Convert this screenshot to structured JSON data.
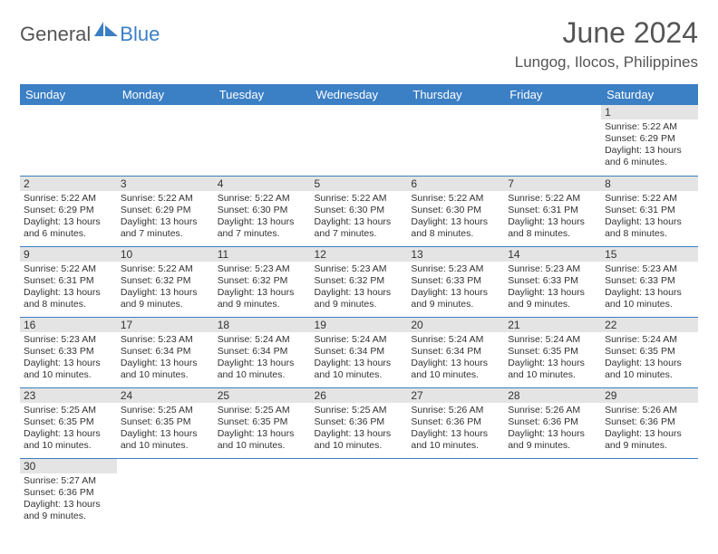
{
  "logo": {
    "general": "General",
    "blue": "Blue"
  },
  "title": "June 2024",
  "subtitle": "Lungog, Ilocos, Philippines",
  "colors": {
    "header_bg": "#3b7fc4",
    "header_text": "#ffffff",
    "daynum_bg": "#e4e4e4",
    "border": "#3b7fc4",
    "text": "#333333",
    "title": "#555555"
  },
  "weekdays": [
    "Sunday",
    "Monday",
    "Tuesday",
    "Wednesday",
    "Thursday",
    "Friday",
    "Saturday"
  ],
  "weeks": [
    [
      null,
      null,
      null,
      null,
      null,
      null,
      {
        "n": "1",
        "sr": "5:22 AM",
        "ss": "6:29 PM",
        "dl": "13 hours and 6 minutes."
      }
    ],
    [
      {
        "n": "2",
        "sr": "5:22 AM",
        "ss": "6:29 PM",
        "dl": "13 hours and 6 minutes."
      },
      {
        "n": "3",
        "sr": "5:22 AM",
        "ss": "6:29 PM",
        "dl": "13 hours and 7 minutes."
      },
      {
        "n": "4",
        "sr": "5:22 AM",
        "ss": "6:30 PM",
        "dl": "13 hours and 7 minutes."
      },
      {
        "n": "5",
        "sr": "5:22 AM",
        "ss": "6:30 PM",
        "dl": "13 hours and 7 minutes."
      },
      {
        "n": "6",
        "sr": "5:22 AM",
        "ss": "6:30 PM",
        "dl": "13 hours and 8 minutes."
      },
      {
        "n": "7",
        "sr": "5:22 AM",
        "ss": "6:31 PM",
        "dl": "13 hours and 8 minutes."
      },
      {
        "n": "8",
        "sr": "5:22 AM",
        "ss": "6:31 PM",
        "dl": "13 hours and 8 minutes."
      }
    ],
    [
      {
        "n": "9",
        "sr": "5:22 AM",
        "ss": "6:31 PM",
        "dl": "13 hours and 8 minutes."
      },
      {
        "n": "10",
        "sr": "5:22 AM",
        "ss": "6:32 PM",
        "dl": "13 hours and 9 minutes."
      },
      {
        "n": "11",
        "sr": "5:23 AM",
        "ss": "6:32 PM",
        "dl": "13 hours and 9 minutes."
      },
      {
        "n": "12",
        "sr": "5:23 AM",
        "ss": "6:32 PM",
        "dl": "13 hours and 9 minutes."
      },
      {
        "n": "13",
        "sr": "5:23 AM",
        "ss": "6:33 PM",
        "dl": "13 hours and 9 minutes."
      },
      {
        "n": "14",
        "sr": "5:23 AM",
        "ss": "6:33 PM",
        "dl": "13 hours and 9 minutes."
      },
      {
        "n": "15",
        "sr": "5:23 AM",
        "ss": "6:33 PM",
        "dl": "13 hours and 10 minutes."
      }
    ],
    [
      {
        "n": "16",
        "sr": "5:23 AM",
        "ss": "6:33 PM",
        "dl": "13 hours and 10 minutes."
      },
      {
        "n": "17",
        "sr": "5:23 AM",
        "ss": "6:34 PM",
        "dl": "13 hours and 10 minutes."
      },
      {
        "n": "18",
        "sr": "5:24 AM",
        "ss": "6:34 PM",
        "dl": "13 hours and 10 minutes."
      },
      {
        "n": "19",
        "sr": "5:24 AM",
        "ss": "6:34 PM",
        "dl": "13 hours and 10 minutes."
      },
      {
        "n": "20",
        "sr": "5:24 AM",
        "ss": "6:34 PM",
        "dl": "13 hours and 10 minutes."
      },
      {
        "n": "21",
        "sr": "5:24 AM",
        "ss": "6:35 PM",
        "dl": "13 hours and 10 minutes."
      },
      {
        "n": "22",
        "sr": "5:24 AM",
        "ss": "6:35 PM",
        "dl": "13 hours and 10 minutes."
      }
    ],
    [
      {
        "n": "23",
        "sr": "5:25 AM",
        "ss": "6:35 PM",
        "dl": "13 hours and 10 minutes."
      },
      {
        "n": "24",
        "sr": "5:25 AM",
        "ss": "6:35 PM",
        "dl": "13 hours and 10 minutes."
      },
      {
        "n": "25",
        "sr": "5:25 AM",
        "ss": "6:35 PM",
        "dl": "13 hours and 10 minutes."
      },
      {
        "n": "26",
        "sr": "5:25 AM",
        "ss": "6:36 PM",
        "dl": "13 hours and 10 minutes."
      },
      {
        "n": "27",
        "sr": "5:26 AM",
        "ss": "6:36 PM",
        "dl": "13 hours and 10 minutes."
      },
      {
        "n": "28",
        "sr": "5:26 AM",
        "ss": "6:36 PM",
        "dl": "13 hours and 9 minutes."
      },
      {
        "n": "29",
        "sr": "5:26 AM",
        "ss": "6:36 PM",
        "dl": "13 hours and 9 minutes."
      }
    ],
    [
      {
        "n": "30",
        "sr": "5:27 AM",
        "ss": "6:36 PM",
        "dl": "13 hours and 9 minutes."
      },
      null,
      null,
      null,
      null,
      null,
      null
    ]
  ],
  "labels": {
    "sunrise": "Sunrise:",
    "sunset": "Sunset:",
    "daylight": "Daylight:"
  }
}
